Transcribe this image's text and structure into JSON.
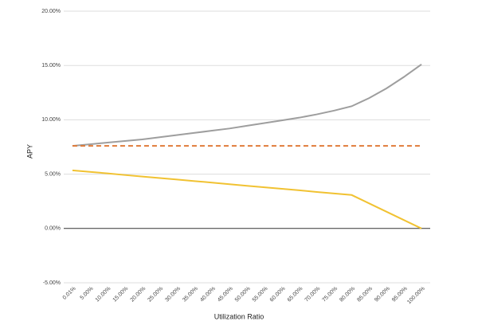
{
  "chart_data": {
    "type": "line",
    "x_label": "Utilization Ratio",
    "y_label": "APY",
    "categories": [
      "0.01%",
      "5.00%",
      "10.00%",
      "15.00%",
      "20.00%",
      "25.00%",
      "30.00%",
      "35.00%",
      "40.00%",
      "45.00%",
      "50.00%",
      "55.00%",
      "60.00%",
      "65.00%",
      "70.00%",
      "75.00%",
      "80.00%",
      "85.00%",
      "90.00%",
      "95.00%",
      "100.00%"
    ],
    "series": [
      {
        "color": "#9e9e9e",
        "line_style": "solid",
        "values": [
          7.6,
          7.75,
          7.9,
          8.05,
          8.2,
          8.4,
          8.6,
          8.8,
          9.0,
          9.2,
          9.45,
          9.7,
          9.95,
          10.2,
          10.5,
          10.85,
          11.25,
          12.0,
          12.9,
          13.95,
          15.1
        ]
      },
      {
        "color": "#e07b39",
        "line_style": "dashed",
        "values": [
          7.6,
          7.6,
          7.6,
          7.6,
          7.6,
          7.6,
          7.6,
          7.6,
          7.6,
          7.6,
          7.6,
          7.6,
          7.6,
          7.6,
          7.6,
          7.6,
          7.6,
          7.6,
          7.6,
          7.6,
          7.6
        ]
      },
      {
        "color": "#f1c232",
        "line_style": "solid",
        "values": [
          5.35,
          5.21,
          5.07,
          4.92,
          4.78,
          4.64,
          4.5,
          4.36,
          4.22,
          4.07,
          3.93,
          3.79,
          3.65,
          3.51,
          3.36,
          3.22,
          3.08,
          2.31,
          1.54,
          0.77,
          0
        ]
      }
    ],
    "ylim": [
      -5,
      20
    ],
    "yticks": [
      {
        "value": -5,
        "label": "-5.00%"
      },
      {
        "value": 0,
        "label": "0.00%"
      },
      {
        "value": 5,
        "label": "5.00%"
      },
      {
        "value": 10,
        "label": "10.00%"
      },
      {
        "value": 15,
        "label": "15.00%"
      },
      {
        "value": 20,
        "label": "20.00%"
      }
    ],
    "grid": true
  }
}
